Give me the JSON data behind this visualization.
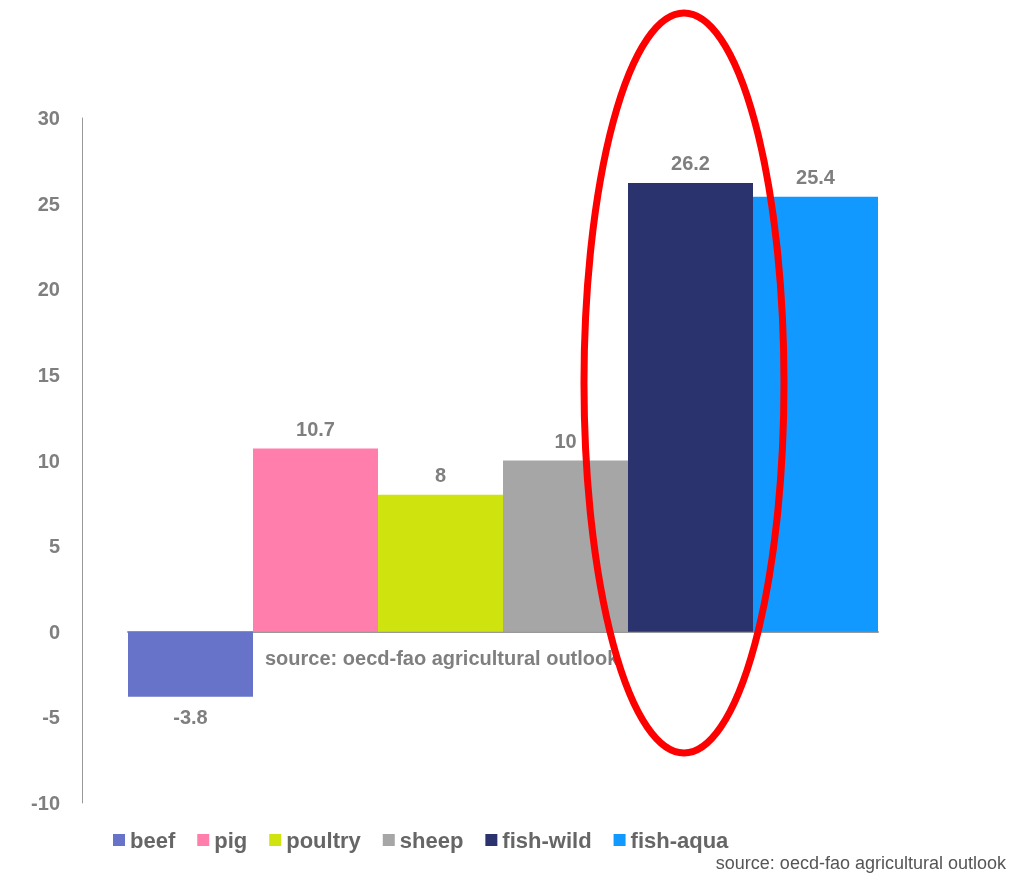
{
  "chart_data": {
    "type": "bar",
    "stacked": true,
    "categories": [
      null,
      null,
      null,
      null,
      null,
      null
    ],
    "series": [
      {
        "name": "beef",
        "color": "#6673c8",
        "values": [
          -3.8,
          null,
          null,
          null,
          null,
          null
        ]
      },
      {
        "name": "pig",
        "color": "#ff7eac",
        "values": [
          null,
          10.7,
          null,
          null,
          null,
          null
        ]
      },
      {
        "name": "poultry",
        "color": "#cfe30f",
        "values": [
          null,
          null,
          8,
          null,
          null,
          null
        ]
      },
      {
        "name": "sheep",
        "color": "#a6a6a6",
        "values": [
          null,
          null,
          null,
          10,
          null,
          null
        ]
      },
      {
        "name": "fish-wild",
        "color": "#2b336e",
        "values": [
          null,
          null,
          null,
          null,
          26.2,
          null
        ]
      },
      {
        "name": "fish-aqua",
        "color": "#1199ff",
        "values": [
          null,
          null,
          null,
          null,
          null,
          25.4
        ]
      }
    ],
    "ylim": [
      -10,
      30
    ],
    "yticks": [
      -10,
      -5,
      0,
      5,
      10,
      15,
      20,
      25,
      30
    ],
    "legend": "bottom",
    "data_labels": true,
    "tick_labels": "y",
    "annotations": [
      "source: oecd-fao agricultural outlook",
      "source: oecd-fao agricultural outlook"
    ]
  }
}
